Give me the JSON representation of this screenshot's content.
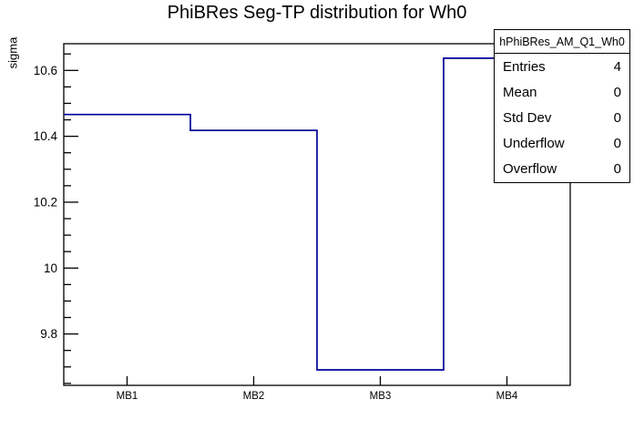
{
  "page": {
    "background_color": "#ffffff",
    "axis_color": "#000000"
  },
  "chart_data": {
    "type": "bar",
    "style": "step-histogram-outline",
    "title": "PhiBRes Seg-TP distribution for Wh0",
    "xlabel": "",
    "ylabel": "sigma",
    "categories": [
      "MB1",
      "MB2",
      "MB3",
      "MB4"
    ],
    "values": [
      10.466,
      10.418,
      9.691,
      10.637
    ],
    "ylim": [
      9.644,
      10.681
    ],
    "y_major_ticks": [
      9.8,
      10,
      10.2,
      10.4,
      10.6
    ],
    "y_minor_tick_step": 0.05,
    "grid": false,
    "legend": "none",
    "line_color": "#000099"
  },
  "stats_box": {
    "title": "hPhiBRes_AM_Q1_Wh0",
    "rows": [
      {
        "label": "Entries",
        "value": "4"
      },
      {
        "label": "Mean",
        "value": "0"
      },
      {
        "label": "Std Dev",
        "value": "0"
      },
      {
        "label": "Underflow",
        "value": "0"
      },
      {
        "label": "Overflow",
        "value": "0"
      }
    ]
  }
}
